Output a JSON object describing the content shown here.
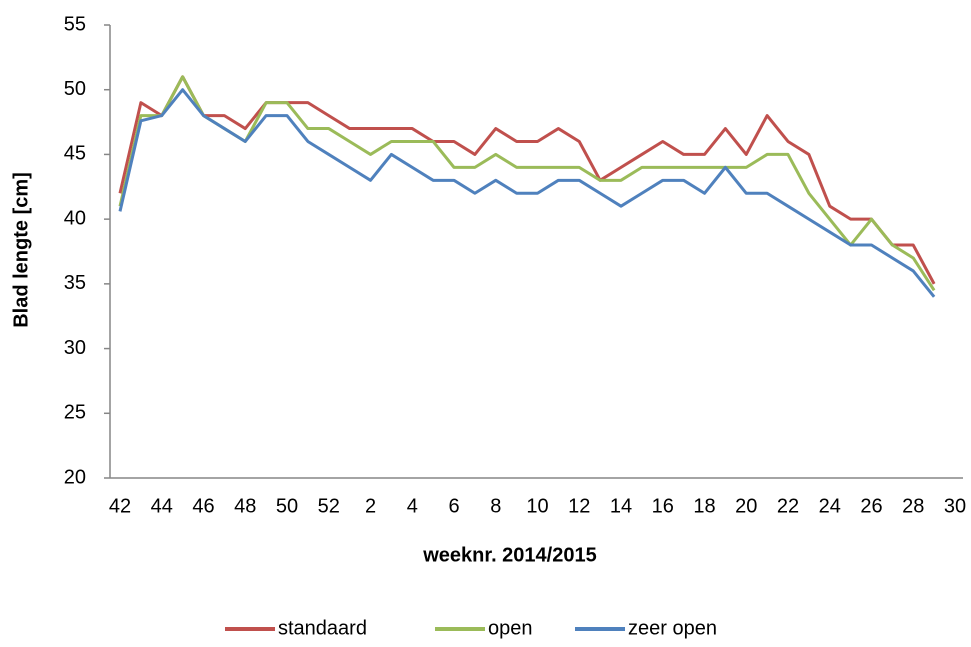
{
  "chart_data": {
    "type": "line",
    "xlabel": "weeknr. 2014/2015",
    "ylabel": "Blad lengte [cm]",
    "categories": [
      "42",
      null,
      "44",
      null,
      "46",
      null,
      "48",
      null,
      "50",
      null,
      "52",
      null,
      "2",
      null,
      "4",
      null,
      "6",
      null,
      "8",
      null,
      "10",
      null,
      "12",
      null,
      "14",
      null,
      "16",
      null,
      "18",
      null,
      "20",
      null,
      "22",
      null,
      "24",
      null,
      "26",
      null,
      "28",
      null,
      "30"
    ],
    "series": [
      {
        "name": "standaard",
        "color": "#c0504d",
        "values": [
          42,
          49,
          48,
          51,
          48,
          48,
          47,
          49,
          49,
          49,
          48,
          47,
          47,
          47,
          47,
          46,
          46,
          45,
          47,
          46,
          46,
          47,
          46,
          43,
          44,
          45,
          46,
          45,
          45,
          47,
          45,
          48,
          46,
          45,
          41,
          40,
          40,
          38,
          38,
          35,
          null
        ]
      },
      {
        "name": "open",
        "color": "#9bbb59",
        "values": [
          41,
          48,
          48,
          51,
          48,
          47,
          46,
          49,
          49,
          47,
          47,
          46,
          45,
          46,
          46,
          46,
          44,
          44,
          45,
          44,
          44,
          44,
          44,
          43,
          43,
          44,
          44,
          44,
          44,
          44,
          44,
          45,
          45,
          42,
          40,
          38,
          40,
          38,
          37,
          34.5,
          null
        ]
      },
      {
        "name": "zeer open",
        "color": "#4f81bd",
        "values": [
          40.6,
          47.6,
          48,
          50,
          48,
          47,
          46,
          48,
          48,
          46,
          45,
          44,
          43,
          45,
          44,
          43,
          43,
          42,
          43,
          42,
          42,
          43,
          43,
          42,
          41,
          42,
          43,
          43,
          42,
          44,
          42,
          42,
          41,
          40,
          39,
          38,
          38,
          37,
          36,
          34,
          null
        ]
      }
    ],
    "ylim": [
      20,
      55
    ],
    "yticks": [
      20,
      25,
      30,
      35,
      40,
      45,
      50,
      55
    ],
    "grid": false,
    "legend": "bottom"
  }
}
